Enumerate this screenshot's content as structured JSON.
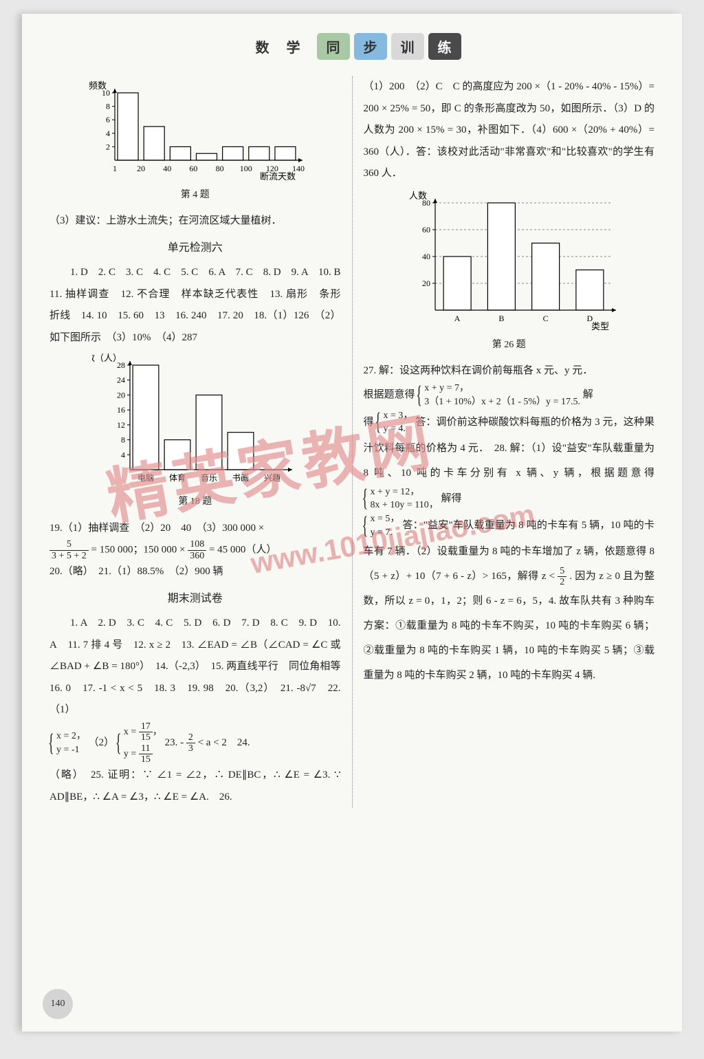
{
  "header": {
    "subject": "数 学",
    "tab1": "同",
    "tab2": "步",
    "tab3": "训",
    "tab4": "练"
  },
  "watermark": {
    "text": "精英家教网",
    "url": "www.1010jiajiao.com"
  },
  "page_number": "140",
  "chart4": {
    "type": "bar",
    "ylabel": "频数",
    "xlabel": "断流天数",
    "categories": [
      "1",
      "20",
      "40",
      "60",
      "80",
      "100",
      "120",
      "140"
    ],
    "values": [
      10,
      5,
      2,
      1,
      2,
      2,
      2
    ],
    "ylim": [
      0,
      10
    ],
    "yticks": [
      2,
      4,
      6,
      8,
      10
    ],
    "bar_color": "#ffffff",
    "bar_border": "#000000",
    "axis_color": "#000000",
    "caption": "第 4 题"
  },
  "chart18": {
    "type": "bar",
    "ylabel": "人数（人）",
    "categories": [
      "电脑",
      "体育",
      "音乐",
      "书画",
      "兴趣"
    ],
    "values": [
      28,
      8,
      20,
      10,
      0
    ],
    "ylim": [
      0,
      28
    ],
    "yticks": [
      4,
      8,
      12,
      16,
      20,
      24,
      28
    ],
    "bar_color": "#ffffff",
    "bar_border": "#000000",
    "axis_color": "#000000",
    "caption": "第 18 题"
  },
  "chart26": {
    "type": "bar",
    "ylabel": "人数",
    "xlabel": "类型",
    "categories": [
      "A",
      "B",
      "C",
      "D"
    ],
    "values": [
      40,
      80,
      50,
      30
    ],
    "ylim": [
      0,
      80
    ],
    "yticks": [
      20,
      40,
      60,
      80
    ],
    "bar_color": "#ffffff",
    "bar_border": "#000000",
    "grid_dash": true,
    "axis_color": "#000000",
    "caption": "第 26 题"
  },
  "left": {
    "p1": "（3）建议：上游水土流失；在河流区域大量植树．",
    "sec1_title": "单元检测六",
    "p2": "1. D　2. C　3. C　4. C　5. C　6. A　7. C　8. D　9. A　10. B　11. 抽样调查　12. 不合理　样本缺乏代表性　13. 扇形　条形　折线　14. 10　15. 60　13　16. 240　17. 20　18.（1）126　（2）如下图所示　（3）10%　（4）287",
    "p3a": "19.（1）抽样调查　（2）20　40　（3）300 000 ×",
    "frac1": {
      "n": "5",
      "d": "3 + 5 + 2"
    },
    "p3b": "= 150 000；150 000 ×",
    "frac2": {
      "n": "108",
      "d": "360"
    },
    "p3c": "= 45 000（人）",
    "p4": "20.（略）　21.（1）88.5%　（2）900 辆",
    "sec2_title": "期末测试卷",
    "p5": "1. A　2. D　3. C　4. C　5. D　6. D　7. D　8. C　9. D　10. A　11. 7 排 4 号　12. x ≥ 2　13. ∠EAD = ∠B（∠CAD = ∠C 或 ∠BAD + ∠B = 180°）　14.（-2,3）　15. 两直线平行　同位角相等　16. 0　17. -1 < x < 5　18. 3　19. 98　20.（3,2）　21. -8√7　22.（1）",
    "sys1": {
      "l1": "x = 2，",
      "l2": "y = -1"
    },
    "p6a": "（2）",
    "sys2n1": "17",
    "sys2d1": "15",
    "sys2n2": "11",
    "sys2d2": "15",
    "p6b": "23. -",
    "frac3": {
      "n": "2",
      "d": "3"
    },
    "p6c": "< a < 2　24.",
    "p7": "（略）　25. 证明：∵ ∠1 = ∠2，∴ DE∥BC，∴ ∠E = ∠3. ∵ AD∥BE，∴ ∠A = ∠3，∴ ∠E = ∠A.　26."
  },
  "right": {
    "p1": "（1）200　（2）C　C 的高度应为 200 ×（1 - 20% - 40% - 15%）= 200 × 25% = 50，即 C 的条形高度改为 50，如图所示．（3）D 的人数为 200 × 15% = 30，补图如下．（4）600 ×（20% + 40%）= 360（人）．答：该校对此活动\"非常喜欢\"和\"比较喜欢\"的学生有 360 人．",
    "p2": "27. 解：设这两种饮料在调价前每瓶各 x 元、y 元．",
    "p2a": "根据题意得",
    "sys3": {
      "l1": "x + y = 7，",
      "l2": "3（1 + 10%）x + 2（1 - 5%）y = 17.5."
    },
    "p2b": "解",
    "p2c": "得",
    "sys4": {
      "l1": "x = 3，",
      "l2": "y = 4."
    },
    "p2d": "答：调价前这种碳酸饮料每瓶的价格为 3 元，这种果汁饮料每瓶的价格为 4 元．　28. 解：（1）设\"益安\"车队载重量为 8 吨、10 吨的卡车分别有 x 辆、y 辆，根据题意得",
    "sys5": {
      "l1": "x + y = 12，",
      "l2": "8x + 10y = 110，"
    },
    "p2e": "解得",
    "sys6": {
      "l1": "x = 5，",
      "l2": "y = 7."
    },
    "p3": "答：\"益安\"车队载重量为 8 吨的卡车有 5 辆，10 吨的卡车有 7 辆．（2）设载重量为 8 吨的卡车增加了 z 辆，依题意得 8（5 + z）+ 10（7 + 6 - z）> 165，解得 z <",
    "frac4": {
      "n": "5",
      "d": "2"
    },
    "p3b": ". 因为 z ≥ 0 且为整数，所以 z = 0，1，2；则 6 - z = 6，5，4. 故车队共有 3 种购车方案：①载重量为 8 吨的卡车不购买，10 吨的卡车购买 6 辆；②载重量为 8 吨的卡车购买 1 辆，10 吨的卡车购买 5 辆；③载重量为 8 吨的卡车购买 2 辆，10 吨的卡车购买 4 辆."
  }
}
